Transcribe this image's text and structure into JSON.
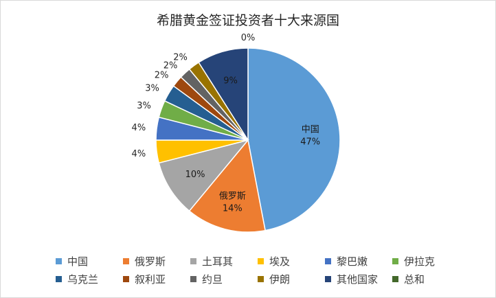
{
  "chart_data": {
    "type": "pie",
    "title": "希腊黄金签证投资者十大来源国",
    "slices": [
      {
        "label": "中国",
        "value": 47,
        "display": "47%",
        "color": "#5B9BD5"
      },
      {
        "label": "俄罗斯",
        "value": 14,
        "display": "14%",
        "color": "#ED7D31"
      },
      {
        "label": "土耳其",
        "value": 10,
        "display": "10%",
        "color": "#A5A5A5"
      },
      {
        "label": "埃及",
        "value": 4,
        "display": "4%",
        "color": "#FFC000"
      },
      {
        "label": "黎巴嫩",
        "value": 4,
        "display": "4%",
        "color": "#4472C4"
      },
      {
        "label": "伊拉克",
        "value": 3,
        "display": "3%",
        "color": "#70AD47"
      },
      {
        "label": "乌克兰",
        "value": 3,
        "display": "3%",
        "color": "#255E91"
      },
      {
        "label": "叙利亚",
        "value": 2,
        "display": "2%",
        "color": "#9E480E"
      },
      {
        "label": "约旦",
        "value": 2,
        "display": "2%",
        "color": "#636363"
      },
      {
        "label": "伊朗",
        "value": 2,
        "display": "2%",
        "color": "#997300"
      },
      {
        "label": "其他国家",
        "value": 9,
        "display": "9%",
        "color": "#264478"
      },
      {
        "label": "总和",
        "value": 0,
        "display": "0%",
        "color": "#43682B"
      }
    ],
    "legend": "bottom"
  }
}
